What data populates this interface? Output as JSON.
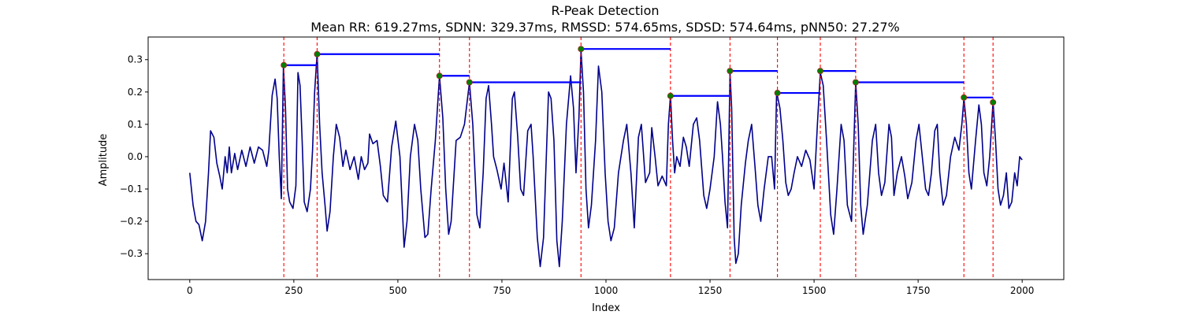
{
  "chart_data": {
    "type": "line",
    "title": "R-Peak Detection",
    "subtitle": "Mean RR: 619.27ms, SDNN: 329.37ms, RMSSD: 574.65ms, SDSD: 574.64ms, pNN50: 27.27%",
    "xlabel": "Index",
    "ylabel": "Amplitude",
    "xlim": [
      -100,
      2100
    ],
    "ylim": [
      -0.38,
      0.37
    ],
    "xticks": [
      0,
      250,
      500,
      750,
      1000,
      1250,
      1500,
      1750,
      2000
    ],
    "yticks": [
      -0.3,
      -0.2,
      -0.1,
      0.0,
      0.1,
      0.2,
      0.3
    ],
    "ytick_labels": [
      "−0.3",
      "−0.2",
      "−0.1",
      "0.0",
      "0.1",
      "0.2",
      "0.3"
    ],
    "grid": false,
    "colors": {
      "signal": "#00008b",
      "peak_marker": "#008000",
      "peak_edge": "#b22222",
      "rr_interval": "#0000ff",
      "peak_line": "#ff0000"
    },
    "signal_keypoints": [
      [
        0,
        -0.05
      ],
      [
        8,
        -0.15
      ],
      [
        15,
        -0.2
      ],
      [
        22,
        -0.21
      ],
      [
        30,
        -0.26
      ],
      [
        38,
        -0.2
      ],
      [
        45,
        -0.05
      ],
      [
        50,
        0.08
      ],
      [
        58,
        0.06
      ],
      [
        65,
        -0.02
      ],
      [
        72,
        -0.06
      ],
      [
        78,
        -0.1
      ],
      [
        85,
        0.0
      ],
      [
        90,
        -0.05
      ],
      [
        95,
        0.03
      ],
      [
        100,
        -0.05
      ],
      [
        108,
        0.01
      ],
      [
        115,
        -0.04
      ],
      [
        125,
        0.02
      ],
      [
        135,
        -0.03
      ],
      [
        145,
        0.03
      ],
      [
        155,
        -0.02
      ],
      [
        165,
        0.03
      ],
      [
        175,
        0.02
      ],
      [
        185,
        -0.03
      ],
      [
        190,
        0.02
      ],
      [
        198,
        0.19
      ],
      [
        205,
        0.24
      ],
      [
        210,
        0.18
      ],
      [
        215,
        0.0
      ],
      [
        220,
        -0.13
      ],
      [
        225,
        0.28
      ],
      [
        230,
        0.15
      ],
      [
        235,
        -0.1
      ],
      [
        240,
        -0.14
      ],
      [
        248,
        -0.16
      ],
      [
        255,
        -0.09
      ],
      [
        260,
        0.26
      ],
      [
        265,
        0.22
      ],
      [
        270,
        0.05
      ],
      [
        275,
        -0.14
      ],
      [
        282,
        -0.17
      ],
      [
        290,
        -0.1
      ],
      [
        295,
        0.02
      ],
      [
        300,
        0.2
      ],
      [
        306,
        0.32
      ],
      [
        312,
        0.1
      ],
      [
        318,
        -0.05
      ],
      [
        325,
        -0.15
      ],
      [
        330,
        -0.23
      ],
      [
        337,
        -0.17
      ],
      [
        345,
        0.0
      ],
      [
        352,
        0.1
      ],
      [
        360,
        0.06
      ],
      [
        368,
        -0.03
      ],
      [
        375,
        0.02
      ],
      [
        385,
        -0.04
      ],
      [
        395,
        0.0
      ],
      [
        405,
        -0.07
      ],
      [
        412,
        0.0
      ],
      [
        420,
        -0.04
      ],
      [
        428,
        -0.02
      ],
      [
        432,
        0.07
      ],
      [
        440,
        0.04
      ],
      [
        450,
        0.05
      ],
      [
        458,
        -0.03
      ],
      [
        465,
        -0.12
      ],
      [
        475,
        -0.14
      ],
      [
        485,
        0.03
      ],
      [
        495,
        0.11
      ],
      [
        505,
        0.0
      ],
      [
        515,
        -0.28
      ],
      [
        522,
        -0.2
      ],
      [
        530,
        0.0
      ],
      [
        540,
        0.1
      ],
      [
        548,
        0.05
      ],
      [
        555,
        -0.1
      ],
      [
        565,
        -0.25
      ],
      [
        572,
        -0.24
      ],
      [
        580,
        -0.1
      ],
      [
        590,
        0.05
      ],
      [
        600,
        0.25
      ],
      [
        608,
        0.12
      ],
      [
        615,
        -0.1
      ],
      [
        622,
        -0.24
      ],
      [
        628,
        -0.2
      ],
      [
        640,
        0.05
      ],
      [
        650,
        0.06
      ],
      [
        660,
        0.1
      ],
      [
        672,
        0.23
      ],
      [
        680,
        0.1
      ],
      [
        690,
        -0.18
      ],
      [
        697,
        -0.22
      ],
      [
        705,
        -0.05
      ],
      [
        712,
        0.18
      ],
      [
        718,
        0.22
      ],
      [
        725,
        0.1
      ],
      [
        730,
        0.0
      ],
      [
        738,
        -0.04
      ],
      [
        748,
        -0.1
      ],
      [
        755,
        -0.02
      ],
      [
        765,
        -0.14
      ],
      [
        775,
        0.18
      ],
      [
        780,
        0.2
      ],
      [
        788,
        0.06
      ],
      [
        795,
        -0.1
      ],
      [
        802,
        -0.12
      ],
      [
        812,
        0.08
      ],
      [
        820,
        0.1
      ],
      [
        825,
        0.0
      ],
      [
        835,
        -0.25
      ],
      [
        842,
        -0.34
      ],
      [
        850,
        -0.25
      ],
      [
        862,
        0.2
      ],
      [
        868,
        0.18
      ],
      [
        875,
        0.05
      ],
      [
        882,
        -0.26
      ],
      [
        888,
        -0.34
      ],
      [
        895,
        -0.2
      ],
      [
        905,
        0.1
      ],
      [
        915,
        0.25
      ],
      [
        922,
        0.15
      ],
      [
        928,
        -0.05
      ],
      [
        935,
        0.12
      ],
      [
        940,
        0.33
      ],
      [
        946,
        0.2
      ],
      [
        952,
        -0.1
      ],
      [
        958,
        -0.22
      ],
      [
        965,
        -0.15
      ],
      [
        975,
        0.05
      ],
      [
        982,
        0.28
      ],
      [
        990,
        0.2
      ],
      [
        998,
        -0.05
      ],
      [
        1005,
        -0.2
      ],
      [
        1012,
        -0.26
      ],
      [
        1020,
        -0.22
      ],
      [
        1030,
        -0.05
      ],
      [
        1042,
        0.05
      ],
      [
        1050,
        0.1
      ],
      [
        1060,
        -0.05
      ],
      [
        1068,
        -0.22
      ],
      [
        1078,
        0.06
      ],
      [
        1085,
        0.1
      ],
      [
        1095,
        -0.08
      ],
      [
        1105,
        -0.05
      ],
      [
        1110,
        0.09
      ],
      [
        1118,
        0.0
      ],
      [
        1125,
        -0.09
      ],
      [
        1135,
        -0.06
      ],
      [
        1145,
        -0.09
      ],
      [
        1150,
        0.1
      ],
      [
        1155,
        0.19
      ],
      [
        1160,
        0.05
      ],
      [
        1165,
        -0.05
      ],
      [
        1170,
        0.0
      ],
      [
        1178,
        -0.03
      ],
      [
        1186,
        0.06
      ],
      [
        1193,
        0.03
      ],
      [
        1200,
        -0.03
      ],
      [
        1210,
        0.1
      ],
      [
        1218,
        0.12
      ],
      [
        1225,
        0.05
      ],
      [
        1235,
        -0.12
      ],
      [
        1242,
        -0.16
      ],
      [
        1250,
        -0.1
      ],
      [
        1260,
        0.0
      ],
      [
        1268,
        0.17
      ],
      [
        1275,
        0.1
      ],
      [
        1280,
        0.0
      ],
      [
        1286,
        -0.14
      ],
      [
        1292,
        -0.22
      ],
      [
        1298,
        0.26
      ],
      [
        1302,
        0.15
      ],
      [
        1308,
        -0.25
      ],
      [
        1312,
        -0.33
      ],
      [
        1318,
        -0.3
      ],
      [
        1325,
        -0.15
      ],
      [
        1335,
        -0.02
      ],
      [
        1342,
        0.05
      ],
      [
        1350,
        0.1
      ],
      [
        1358,
        -0.03
      ],
      [
        1365,
        -0.15
      ],
      [
        1372,
        -0.2
      ],
      [
        1380,
        -0.1
      ],
      [
        1390,
        0.0
      ],
      [
        1398,
        0.0
      ],
      [
        1405,
        -0.1
      ],
      [
        1410,
        0.2
      ],
      [
        1418,
        0.15
      ],
      [
        1425,
        0.05
      ],
      [
        1432,
        -0.08
      ],
      [
        1438,
        -0.12
      ],
      [
        1445,
        -0.1
      ],
      [
        1452,
        -0.05
      ],
      [
        1460,
        0.0
      ],
      [
        1470,
        -0.03
      ],
      [
        1480,
        0.02
      ],
      [
        1490,
        -0.01
      ],
      [
        1500,
        -0.1
      ],
      [
        1508,
        0.1
      ],
      [
        1515,
        0.26
      ],
      [
        1522,
        0.22
      ],
      [
        1530,
        0.05
      ],
      [
        1540,
        -0.18
      ],
      [
        1547,
        -0.24
      ],
      [
        1555,
        -0.1
      ],
      [
        1565,
        0.1
      ],
      [
        1572,
        0.05
      ],
      [
        1580,
        -0.15
      ],
      [
        1590,
        -0.2
      ],
      [
        1600,
        0.23
      ],
      [
        1606,
        0.1
      ],
      [
        1612,
        -0.15
      ],
      [
        1618,
        -0.24
      ],
      [
        1628,
        -0.15
      ],
      [
        1640,
        0.05
      ],
      [
        1648,
        0.1
      ],
      [
        1655,
        -0.05
      ],
      [
        1662,
        -0.12
      ],
      [
        1670,
        -0.08
      ],
      [
        1680,
        0.1
      ],
      [
        1686,
        0.06
      ],
      [
        1692,
        -0.12
      ],
      [
        1700,
        -0.05
      ],
      [
        1710,
        0.0
      ],
      [
        1718,
        -0.06
      ],
      [
        1725,
        -0.13
      ],
      [
        1735,
        -0.08
      ],
      [
        1745,
        0.05
      ],
      [
        1752,
        0.1
      ],
      [
        1760,
        0.0
      ],
      [
        1768,
        -0.1
      ],
      [
        1775,
        -0.12
      ],
      [
        1782,
        -0.05
      ],
      [
        1790,
        0.08
      ],
      [
        1796,
        0.1
      ],
      [
        1802,
        -0.05
      ],
      [
        1810,
        -0.15
      ],
      [
        1818,
        -0.12
      ],
      [
        1828,
        0.0
      ],
      [
        1838,
        0.06
      ],
      [
        1848,
        0.02
      ],
      [
        1855,
        0.1
      ],
      [
        1860,
        0.18
      ],
      [
        1866,
        0.1
      ],
      [
        1872,
        -0.05
      ],
      [
        1878,
        -0.1
      ],
      [
        1888,
        0.05
      ],
      [
        1896,
        0.16
      ],
      [
        1902,
        0.1
      ],
      [
        1908,
        -0.05
      ],
      [
        1915,
        -0.09
      ],
      [
        1922,
        0.0
      ],
      [
        1930,
        0.17
      ],
      [
        1936,
        0.05
      ],
      [
        1942,
        -0.1
      ],
      [
        1948,
        -0.15
      ],
      [
        1955,
        -0.12
      ],
      [
        1962,
        -0.05
      ],
      [
        1968,
        -0.16
      ],
      [
        1975,
        -0.14
      ],
      [
        1982,
        -0.05
      ],
      [
        1988,
        -0.09
      ],
      [
        1994,
        0.0
      ],
      [
        2000,
        -0.01
      ]
    ],
    "peaks": [
      {
        "x": 226,
        "y": 0.283
      },
      {
        "x": 306,
        "y": 0.317
      },
      {
        "x": 600,
        "y": 0.25
      },
      {
        "x": 672,
        "y": 0.23
      },
      {
        "x": 940,
        "y": 0.333
      },
      {
        "x": 1155,
        "y": 0.188
      },
      {
        "x": 1298,
        "y": 0.265
      },
      {
        "x": 1412,
        "y": 0.197
      },
      {
        "x": 1515,
        "y": 0.265
      },
      {
        "x": 1600,
        "y": 0.23
      },
      {
        "x": 1860,
        "y": 0.183
      },
      {
        "x": 1930,
        "y": 0.168
      }
    ]
  }
}
